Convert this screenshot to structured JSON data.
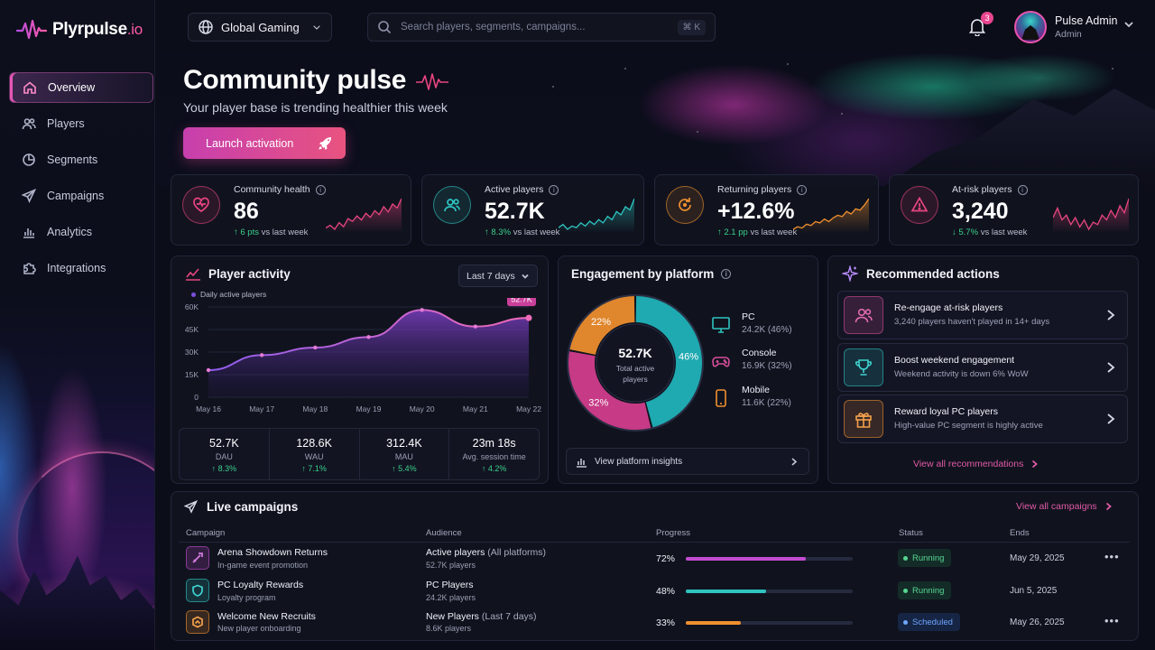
{
  "brand": {
    "name": "Plyrpulse",
    "suffix": ".io"
  },
  "sidebar": {
    "items": [
      {
        "label": "Overview",
        "icon": "home-icon",
        "active": true
      },
      {
        "label": "Players",
        "icon": "users-icon"
      },
      {
        "label": "Segments",
        "icon": "pie-icon"
      },
      {
        "label": "Campaigns",
        "icon": "send-icon"
      },
      {
        "label": "Analytics",
        "icon": "bar-chart-icon"
      },
      {
        "label": "Integrations",
        "icon": "puzzle-icon"
      }
    ]
  },
  "header": {
    "workspace": "Global Gaming",
    "search_placeholder": "Search players, segments, campaigns...",
    "search_shortcut": "⌘ K",
    "notifications": "3",
    "user_name": "Pulse Admin",
    "user_role": "Admin"
  },
  "hero": {
    "title": "Community pulse",
    "subtitle": "Your player base is trending healthier this week",
    "cta": "Launch activation"
  },
  "stats": [
    {
      "label": "Community health",
      "value": "86",
      "delta": "↑ 6 pts",
      "delta_suffix": "vs last week",
      "color": "#e8457f",
      "spark": [
        18,
        20,
        17,
        22,
        19,
        25,
        23,
        27,
        24,
        29,
        26,
        31,
        28,
        34,
        30,
        36,
        33,
        40
      ]
    },
    {
      "label": "Active players",
      "value": "52.7K",
      "delta": "↑ 8.3%",
      "delta_suffix": "vs last week",
      "color": "#2ec4c0",
      "spark": [
        12,
        14,
        11,
        13,
        12,
        15,
        13,
        16,
        14,
        17,
        15,
        19,
        17,
        22,
        20,
        25,
        23,
        30
      ]
    },
    {
      "label": "Returning players",
      "value": "+12.6%",
      "delta": "↑ 2.1 pp",
      "delta_suffix": "vs last week",
      "color": "#f0902f",
      "spark": [
        10,
        12,
        11,
        14,
        13,
        16,
        15,
        18,
        16,
        19,
        21,
        20,
        24,
        22,
        26,
        25,
        29,
        34
      ]
    },
    {
      "label": "At-risk players",
      "value": "3,240",
      "delta": "↓ 5.7%",
      "delta_suffix": "vs last week",
      "color": "#e8457f",
      "spark": [
        30,
        34,
        29,
        31,
        27,
        30,
        26,
        29,
        25,
        28,
        27,
        31,
        29,
        33,
        30,
        35,
        32,
        38
      ]
    }
  ],
  "activity": {
    "title": "Player activity",
    "range": "Last 7 days",
    "legend": "Daily active players",
    "y_ticks": [
      "60K",
      "45K",
      "30K",
      "15K",
      "0"
    ],
    "badge": "52.7K",
    "metrics": [
      {
        "value": "52.7K",
        "label": "DAU",
        "delta": "↑ 8.3%"
      },
      {
        "value": "128.6K",
        "label": "WAU",
        "delta": "↑ 7.1%"
      },
      {
        "value": "312.4K",
        "label": "MAU",
        "delta": "↑ 5.4%"
      },
      {
        "value": "23m 18s",
        "label": "Avg. session time",
        "delta": "↑ 4.2%"
      }
    ]
  },
  "chart_data": {
    "type": "area",
    "x": [
      "May 16",
      "May 17",
      "May 18",
      "May 19",
      "May 20",
      "May 21",
      "May 22"
    ],
    "series": [
      {
        "name": "Daily active players",
        "values": [
          18000,
          28000,
          33000,
          40000,
          58000,
          47000,
          52700
        ]
      }
    ],
    "ylim": [
      0,
      60000
    ],
    "y_ticks": [
      "60K",
      "45K",
      "30K",
      "15K",
      "0"
    ]
  },
  "platform": {
    "title": "Engagement by platform",
    "center_value": "52.7K",
    "center_label": "Total active players",
    "segments": [
      {
        "name": "PC",
        "value": "24.2K (46%)",
        "pct": 46,
        "pct_label": "46%",
        "color": "#1fa9b0",
        "icon": "monitor-icon"
      },
      {
        "name": "Console",
        "value": "16.9K (32%)",
        "pct": 32,
        "pct_label": "32%",
        "color": "#c63a86",
        "icon": "gamepad-icon"
      },
      {
        "name": "Mobile",
        "value": "11.6K (22%)",
        "pct": 22,
        "pct_label": "22%",
        "color": "#e0872d",
        "icon": "phone-icon"
      }
    ],
    "insights": "View platform insights"
  },
  "recommendations": {
    "title": "Recommended actions",
    "items": [
      {
        "title": "Re-engage at-risk players",
        "desc": "3,240 players haven't played in 14+ days",
        "color": "#d94f9c",
        "icon": "users-icon"
      },
      {
        "title": "Boost weekend engagement",
        "desc": "Weekend activity is down 6% WoW",
        "color": "#2ec4c0",
        "icon": "trophy-icon"
      },
      {
        "title": "Reward loyal PC players",
        "desc": "High-value PC segment is highly active",
        "color": "#f0902f",
        "icon": "gift-icon"
      }
    ],
    "view_all": "View all recommendations"
  },
  "campaigns": {
    "title": "Live campaigns",
    "view_all": "View all campaigns",
    "columns": [
      "Campaign",
      "Audience",
      "Progress",
      "Status",
      "Ends"
    ],
    "rows": [
      {
        "name": "Arena Showdown Returns",
        "sub": "In-game event promotion",
        "audience": "Active players",
        "audience_note": "(All platforms)",
        "audience_sub": "52.7K players",
        "progress": 72,
        "progress_label": "72%",
        "status": "Running",
        "ends": "May 29, 2025",
        "color": "#c44bd0"
      },
      {
        "name": "PC Loyalty Rewards",
        "sub": "Loyalty program",
        "audience": "PC Players",
        "audience_note": "",
        "audience_sub": "24.2K players",
        "progress": 48,
        "progress_label": "48%",
        "status": "Running",
        "ends": "Jun 5, 2025",
        "color": "#2ec4c0"
      },
      {
        "name": "Welcome New Recruits",
        "sub": "New player onboarding",
        "audience": "New Players",
        "audience_note": "(Last 7 days)",
        "audience_sub": "8.6K players",
        "progress": 33,
        "progress_label": "33%",
        "status": "Scheduled",
        "ends": "May 26, 2025",
        "color": "#f0902f"
      }
    ]
  }
}
